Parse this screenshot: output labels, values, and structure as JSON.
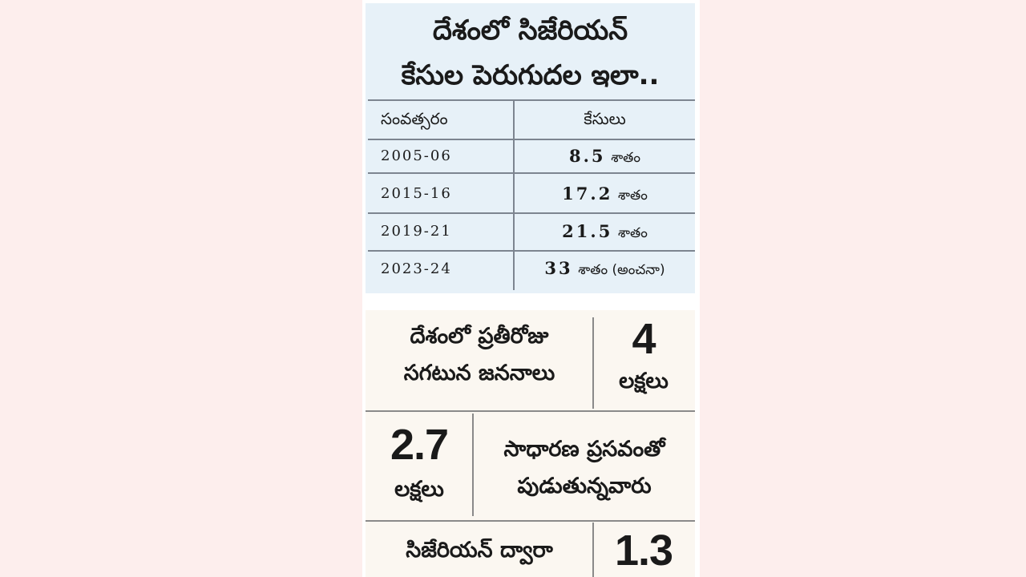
{
  "title": {
    "line1": "దేశంలో సిజేరియన్",
    "line2": "కేసుల పెరుగుదల ఇలా.."
  },
  "table": {
    "headers": [
      "సంవత్సరం",
      "కేసులు"
    ],
    "rows": [
      {
        "year": "2005-06",
        "value": "8.5",
        "unit": "శాతం"
      },
      {
        "year": "2015-16",
        "value": "17.2",
        "unit": "శాతం"
      },
      {
        "year": "2019-21",
        "value": "21.5",
        "unit": "శాతం"
      },
      {
        "year": "2023-24",
        "value": "33",
        "unit": "శాతం (అంచనా)"
      }
    ]
  },
  "facts": [
    {
      "text_line1": "దేశంలో ప్రతీరోజు",
      "text_line2": "సగటున జననాలు",
      "number": "4",
      "number_unit": "లక్షలు"
    },
    {
      "text_line1": "సాధారణ ప్రసవంతో",
      "text_line2": "పుడుతున్నవారు",
      "number": "2.7",
      "number_unit": "లక్షలు"
    },
    {
      "text_line1": "సిజేరియన్ ద్వారా",
      "number": "1.3"
    }
  ]
}
